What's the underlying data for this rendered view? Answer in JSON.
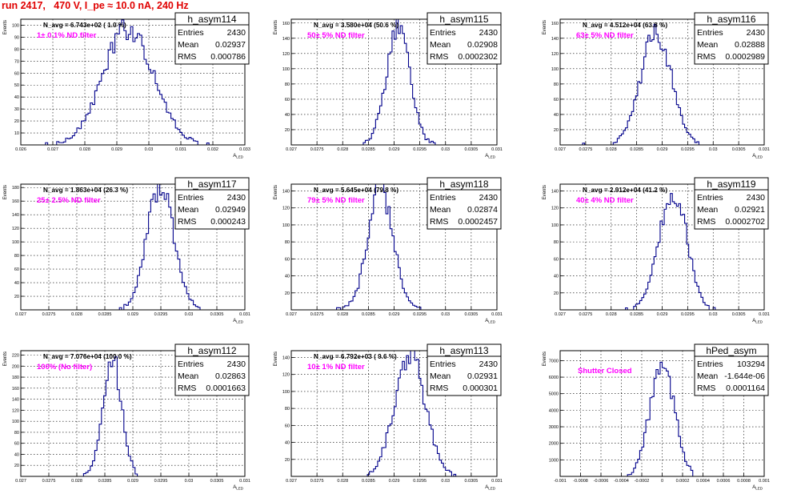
{
  "page": {
    "title": "run 2417,   470 V, I_pe ≈ 10.0 nA, 240 Hz",
    "colors": {
      "histogram": "#00008b",
      "annotation": "#ff00ff",
      "title": "#e00000",
      "grid": "#000000"
    }
  },
  "chart_data": [
    {
      "type": "histogram",
      "name": "h_asym114",
      "stats": {
        "entries": "2430",
        "mean": "0.02937",
        "rms": "0.000786"
      },
      "navg": "N_avg = 6.743e+02 ( 1.0 %)",
      "note": "1± 0.1% ND filter",
      "ylabel": "Events",
      "xlabel": "A_{LED}",
      "xlim": [
        0.026,
        0.033
      ],
      "ylim": [
        0,
        105
      ],
      "xticks": [
        0.026,
        0.027,
        0.028,
        0.029,
        0.03,
        0.031,
        0.032,
        0.033
      ],
      "xtick_labels": [
        "0.026",
        "0.027",
        "0.028",
        "0.029",
        "0.03",
        "0.031",
        "0.032",
        "0.033"
      ],
      "yticks": [
        0,
        10,
        20,
        30,
        40,
        50,
        60,
        70,
        80,
        90,
        100
      ],
      "ytick_labels": [
        "",
        "10",
        "20",
        "30",
        "40",
        "50",
        "60",
        "70",
        "80",
        "90",
        "100"
      ],
      "grid": true,
      "shape": {
        "mean": 0.02937,
        "sigma": 0.000786,
        "peak": 98
      }
    },
    {
      "type": "histogram",
      "name": "h_asym115",
      "stats": {
        "entries": "2430",
        "mean": "0.02908",
        "rms": "0.0002302"
      },
      "navg": "N_avg = 3.580e+04 (50.6 %)",
      "note": "50± 5% ND filter",
      "ylabel": "Events",
      "xlabel": "A_{LED}",
      "xlim": [
        0.027,
        0.031
      ],
      "ylim": [
        0,
        165
      ],
      "xticks": [
        0.027,
        0.0275,
        0.028,
        0.0285,
        0.029,
        0.0295,
        0.03,
        0.0305,
        0.031
      ],
      "xtick_labels": [
        "0.027",
        "0.0275",
        "0.028",
        "0.0285",
        "0.029",
        "0.0295",
        "0.03",
        "0.0305",
        "0.031"
      ],
      "yticks": [
        0,
        20,
        40,
        60,
        80,
        100,
        120,
        140,
        160
      ],
      "ytick_labels": [
        "",
        "20",
        "40",
        "60",
        "80",
        "100",
        "120",
        "140",
        "160"
      ],
      "grid": true,
      "shape": {
        "mean": 0.02908,
        "sigma": 0.0002302,
        "peak": 155
      }
    },
    {
      "type": "histogram",
      "name": "h_asym116",
      "stats": {
        "entries": "2430",
        "mean": "0.02888",
        "rms": "0.0002989"
      },
      "navg": "N_avg = 4.512e+04 (63.8 %)",
      "note": "63± 5% ND filter",
      "ylabel": "Events",
      "xlabel": "A_{LED}",
      "xlim": [
        0.027,
        0.031
      ],
      "ylim": [
        0,
        165
      ],
      "xticks": [
        0.027,
        0.0275,
        0.028,
        0.0285,
        0.029,
        0.0295,
        0.03,
        0.0305,
        0.031
      ],
      "xtick_labels": [
        "0.027",
        "0.0275",
        "0.028",
        "0.0285",
        "0.029",
        "0.0295",
        "0.03",
        "0.0305",
        "0.031"
      ],
      "yticks": [
        0,
        20,
        40,
        60,
        80,
        100,
        120,
        140,
        160
      ],
      "ytick_labels": [
        "",
        "20",
        "40",
        "60",
        "80",
        "100",
        "120",
        "140",
        "160"
      ],
      "grid": true,
      "shape": {
        "mean": 0.02888,
        "sigma": 0.0002989,
        "peak": 150
      }
    },
    {
      "type": "histogram",
      "name": "h_asym117",
      "stats": {
        "entries": "2430",
        "mean": "0.02949",
        "rms": "0.000243"
      },
      "navg": "N_avg = 1.863e+04 (26.3 %)",
      "note": "25± 2.5% ND filter",
      "ylabel": "Events",
      "xlabel": "A_{LED}",
      "xlim": [
        0.027,
        0.031
      ],
      "ylim": [
        0,
        185
      ],
      "xticks": [
        0.027,
        0.0275,
        0.028,
        0.0285,
        0.029,
        0.0295,
        0.03,
        0.0305,
        0.031
      ],
      "xtick_labels": [
        "0.027",
        "0.0275",
        "0.028",
        "0.0285",
        "0.029",
        "0.0295",
        "0.03",
        "0.0305",
        "0.031"
      ],
      "yticks": [
        0,
        20,
        40,
        60,
        80,
        100,
        120,
        140,
        160,
        180
      ],
      "ytick_labels": [
        "",
        "20",
        "40",
        "60",
        "80",
        "100",
        "120",
        "140",
        "160",
        "180"
      ],
      "grid": true,
      "shape": {
        "mean": 0.02949,
        "sigma": 0.000243,
        "peak": 180
      }
    },
    {
      "type": "histogram",
      "name": "h_asym118",
      "stats": {
        "entries": "2430",
        "mean": "0.02874",
        "rms": "0.0002457"
      },
      "navg": "N_avg = 5.645e+04 (79.8 %)",
      "note": "79± 5% ND filter",
      "ylabel": "Events",
      "xlabel": "A_{LED}",
      "xlim": [
        0.027,
        0.031
      ],
      "ylim": [
        0,
        148
      ],
      "xticks": [
        0.027,
        0.0275,
        0.028,
        0.0285,
        0.029,
        0.0295,
        0.03,
        0.0305,
        0.031
      ],
      "xtick_labels": [
        "0.027",
        "0.0275",
        "0.028",
        "0.0285",
        "0.029",
        "0.0295",
        "0.03",
        "0.0305",
        "0.031"
      ],
      "yticks": [
        0,
        20,
        40,
        60,
        80,
        100,
        120,
        140
      ],
      "ytick_labels": [
        "",
        "20",
        "40",
        "60",
        "80",
        "100",
        "120",
        "140"
      ],
      "grid": true,
      "shape": {
        "mean": 0.02874,
        "sigma": 0.0002457,
        "peak": 145
      }
    },
    {
      "type": "histogram",
      "name": "h_asym119",
      "stats": {
        "entries": "2430",
        "mean": "0.02921",
        "rms": "0.0002702"
      },
      "navg": "N_avg = 2.912e+04 (41.2 %)",
      "note": "40± 4% ND filter",
      "ylabel": "Events",
      "xlabel": "A_{LED}",
      "xlim": [
        0.027,
        0.031
      ],
      "ylim": [
        0,
        148
      ],
      "xticks": [
        0.027,
        0.0275,
        0.028,
        0.0285,
        0.029,
        0.0295,
        0.03,
        0.0305,
        0.031
      ],
      "xtick_labels": [
        "0.027",
        "0.0275",
        "0.028",
        "0.0285",
        "0.029",
        "0.0295",
        "0.03",
        "0.0305",
        "0.031"
      ],
      "yticks": [
        0,
        20,
        40,
        60,
        80,
        100,
        120,
        140
      ],
      "ytick_labels": [
        "",
        "20",
        "40",
        "60",
        "80",
        "100",
        "120",
        "140"
      ],
      "grid": true,
      "shape": {
        "mean": 0.02921,
        "sigma": 0.0002702,
        "peak": 142
      }
    },
    {
      "type": "histogram",
      "name": "h_asym112",
      "stats": {
        "entries": "2430",
        "mean": "0.02863",
        "rms": "0.0001663"
      },
      "navg": "N_avg = 7.076e+04 (100.0 %)",
      "note": "100% (No filter)",
      "ylabel": "Events",
      "xlabel": "A_{LED}",
      "xlim": [
        0.027,
        0.031
      ],
      "ylim": [
        0,
        228
      ],
      "xticks": [
        0.027,
        0.0275,
        0.028,
        0.0285,
        0.029,
        0.0295,
        0.03,
        0.0305,
        0.031
      ],
      "xtick_labels": [
        "0.027",
        "0.0275",
        "0.028",
        "0.0285",
        "0.029",
        "0.0295",
        "0.03",
        "0.0305",
        "0.031"
      ],
      "yticks": [
        0,
        20,
        40,
        60,
        80,
        100,
        120,
        140,
        160,
        180,
        200,
        220
      ],
      "ytick_labels": [
        "",
        "20",
        "40",
        "60",
        "80",
        "100",
        "120",
        "140",
        "160",
        "180",
        "200",
        "220"
      ],
      "grid": true,
      "shape": {
        "mean": 0.02863,
        "sigma": 0.0001663,
        "peak": 218
      }
    },
    {
      "type": "histogram",
      "name": "h_asym113",
      "stats": {
        "entries": "2430",
        "mean": "0.02931",
        "rms": "0.000301"
      },
      "navg": "N_avg = 6.792e+03 ( 9.6 %)",
      "note": "10± 1% ND filter",
      "ylabel": "Events",
      "xlabel": "A_{LED}",
      "xlim": [
        0.027,
        0.031
      ],
      "ylim": [
        0,
        148
      ],
      "xticks": [
        0.027,
        0.0275,
        0.028,
        0.0285,
        0.029,
        0.0295,
        0.03,
        0.0305,
        0.031
      ],
      "xtick_labels": [
        "0.027",
        "0.0275",
        "0.028",
        "0.0285",
        "0.029",
        "0.0295",
        "0.03",
        "0.0305",
        "0.031"
      ],
      "yticks": [
        0,
        20,
        40,
        60,
        80,
        100,
        120,
        140
      ],
      "ytick_labels": [
        "",
        "20",
        "40",
        "60",
        "80",
        "100",
        "120",
        "140"
      ],
      "grid": true,
      "shape": {
        "mean": 0.02931,
        "sigma": 0.000301,
        "peak": 140
      }
    },
    {
      "type": "histogram",
      "name": "hPed_asym",
      "stats": {
        "entries": "103294",
        "mean": "-1.644e-06",
        "rms": "0.0001164"
      },
      "navg": "",
      "note": "Shutter Closed",
      "ylabel": "Events",
      "xlabel": "A_{LED}",
      "xlim": [
        -0.001,
        0.001
      ],
      "ylim": [
        0,
        7600
      ],
      "xticks": [
        -0.001,
        -0.0008,
        -0.0006,
        -0.0004,
        -0.0002,
        0,
        0.0002,
        0.0004,
        0.0006,
        0.0008,
        0.001
      ],
      "xtick_labels": [
        "-0.001",
        "-0.0008",
        "-0.0006",
        "-0.0004",
        "-0.0002",
        "0",
        "0.0002",
        "0.0004",
        "0.0006",
        "0.0008",
        "0.001"
      ],
      "yticks": [
        0,
        1000,
        2000,
        3000,
        4000,
        5000,
        6000,
        7000
      ],
      "ytick_labels": [
        "",
        "1000",
        "2000",
        "3000",
        "4000",
        "5000",
        "6000",
        "7000"
      ],
      "grid": true,
      "shape": {
        "mean": 0.0,
        "sigma": 0.0001164,
        "peak": 7150
      }
    }
  ]
}
